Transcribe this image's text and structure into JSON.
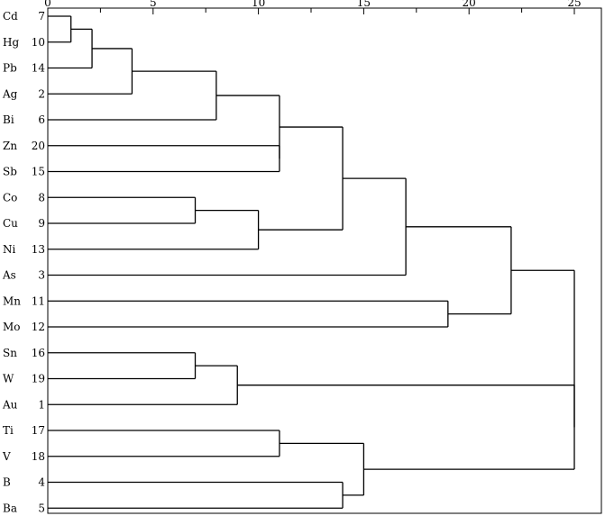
{
  "chart_data": {
    "type": "dendrogram",
    "title": "",
    "xlabel": "",
    "xlim": [
      0,
      25
    ],
    "major_ticks": [
      0,
      5,
      10,
      15,
      20,
      25
    ],
    "minor_step": 2.5,
    "leaves": [
      {
        "label": "Cd",
        "id": "7"
      },
      {
        "label": "Hg",
        "id": "10"
      },
      {
        "label": "Pb",
        "id": "14"
      },
      {
        "label": "Ag",
        "id": "2"
      },
      {
        "label": "Bi",
        "id": "6"
      },
      {
        "label": "Zn",
        "id": "20"
      },
      {
        "label": "Sb",
        "id": "15"
      },
      {
        "label": "Co",
        "id": "8"
      },
      {
        "label": "Cu",
        "id": "9"
      },
      {
        "label": "Ni",
        "id": "13"
      },
      {
        "label": "As",
        "id": "3"
      },
      {
        "label": "Mn",
        "id": "11"
      },
      {
        "label": "Mo",
        "id": "12"
      },
      {
        "label": "Sn",
        "id": "16"
      },
      {
        "label": "W",
        "id": "19"
      },
      {
        "label": "Au",
        "id": "1"
      },
      {
        "label": "Ti",
        "id": "17"
      },
      {
        "label": "V",
        "id": "18"
      },
      {
        "label": "B",
        "id": "4"
      },
      {
        "label": "Ba",
        "id": "5"
      }
    ],
    "merges": [
      {
        "id": "m1",
        "children": [
          "L0",
          "L1"
        ],
        "height": 1.1
      },
      {
        "id": "m2",
        "children": [
          "m1",
          "L2"
        ],
        "height": 2.1
      },
      {
        "id": "m3",
        "children": [
          "m2",
          "L3"
        ],
        "height": 4.0
      },
      {
        "id": "m4",
        "children": [
          "m3",
          "L4"
        ],
        "height": 8.0
      },
      {
        "id": "m5",
        "children": [
          "L5",
          "L6"
        ],
        "height": 11.0
      },
      {
        "id": "m6",
        "children": [
          "m4",
          "m5"
        ],
        "height": 11.0
      },
      {
        "id": "m7",
        "children": [
          "L7",
          "L8"
        ],
        "height": 7.0
      },
      {
        "id": "m8",
        "children": [
          "m7",
          "L9"
        ],
        "height": 10.0
      },
      {
        "id": "m9",
        "children": [
          "m6",
          "m8"
        ],
        "height": 14.0
      },
      {
        "id": "m10",
        "children": [
          "m9",
          "L10"
        ],
        "height": 17.0
      },
      {
        "id": "m11",
        "children": [
          "L11",
          "L12"
        ],
        "height": 19.0
      },
      {
        "id": "m12",
        "children": [
          "m10",
          "m11"
        ],
        "height": 22.0
      },
      {
        "id": "m13",
        "children": [
          "L13",
          "L14"
        ],
        "height": 7.0
      },
      {
        "id": "m14",
        "children": [
          "m13",
          "L15"
        ],
        "height": 9.0
      },
      {
        "id": "m15",
        "children": [
          "L16",
          "L17"
        ],
        "height": 11.0
      },
      {
        "id": "m17",
        "children": [
          "L18",
          "L19"
        ],
        "height": 14.0
      },
      {
        "id": "m16",
        "children": [
          "m15",
          "m17"
        ],
        "height": 15.0
      },
      {
        "id": "m18",
        "children": [
          "m14",
          "m16"
        ],
        "height": 25.0
      },
      {
        "id": "m19",
        "children": [
          "m12",
          "m18"
        ],
        "height": 25.0
      }
    ]
  }
}
